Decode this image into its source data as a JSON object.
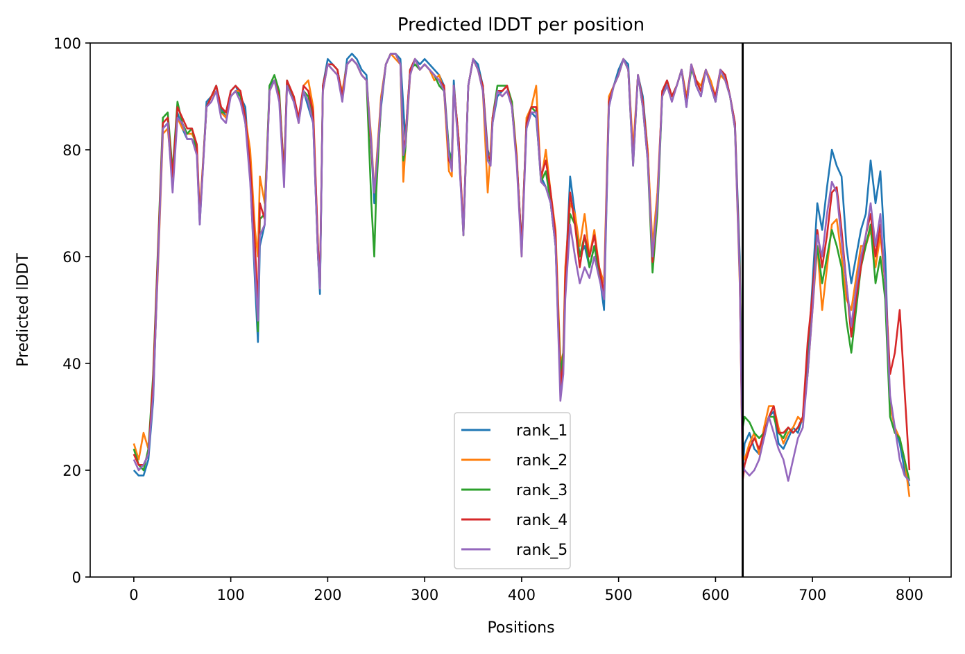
{
  "chart_data": {
    "type": "line",
    "title": "Predicted lDDT per position",
    "xlabel": "Positions",
    "ylabel": "Predicted lDDT",
    "xlim": [
      -45,
      843
    ],
    "ylim": [
      0,
      100
    ],
    "xticks": [
      0,
      100,
      200,
      300,
      400,
      500,
      600,
      700,
      800
    ],
    "yticks": [
      0,
      20,
      40,
      60,
      80,
      100
    ],
    "grid": false,
    "legend_position": "lower center",
    "vline_x": 628,
    "colors": {
      "rank_1": "#1f77b4",
      "rank_2": "#ff7f0e",
      "rank_3": "#2ca02c",
      "rank_4": "#d62728",
      "rank_5": "#9467bd",
      "vline": "#000000"
    },
    "x": [
      0,
      5,
      10,
      15,
      20,
      25,
      30,
      35,
      40,
      45,
      50,
      55,
      60,
      65,
      68,
      75,
      80,
      85,
      90,
      95,
      100,
      105,
      110,
      115,
      120,
      125,
      128,
      130,
      135,
      140,
      145,
      150,
      155,
      158,
      165,
      170,
      175,
      180,
      185,
      190,
      192,
      195,
      200,
      205,
      210,
      215,
      220,
      225,
      230,
      235,
      240,
      245,
      248,
      250,
      255,
      260,
      265,
      270,
      275,
      278,
      280,
      285,
      290,
      295,
      300,
      305,
      310,
      315,
      320,
      325,
      328,
      330,
      335,
      340,
      345,
      350,
      355,
      360,
      365,
      368,
      370,
      375,
      380,
      385,
      390,
      395,
      400,
      405,
      410,
      415,
      420,
      425,
      430,
      435,
      440,
      443,
      445,
      450,
      455,
      460,
      465,
      470,
      475,
      480,
      485,
      490,
      495,
      500,
      505,
      510,
      515,
      520,
      525,
      530,
      535,
      540,
      545,
      550,
      555,
      560,
      565,
      570,
      575,
      580,
      585,
      590,
      595,
      600,
      605,
      610,
      615,
      620,
      625,
      628,
      630,
      635,
      640,
      645,
      650,
      655,
      660,
      665,
      670,
      675,
      680,
      685,
      690,
      695,
      700,
      705,
      710,
      715,
      720,
      725,
      730,
      735,
      740,
      745,
      750,
      755,
      760,
      765,
      770,
      775,
      780,
      785,
      790,
      795,
      800
    ],
    "series": [
      {
        "name": "rank_1",
        "values": [
          20,
          19,
          19,
          22,
          33,
          60,
          84,
          85,
          75,
          87,
          84,
          82,
          82,
          80,
          66,
          89,
          90,
          92,
          88,
          86,
          91,
          92,
          90,
          88,
          75,
          55,
          44,
          62,
          66,
          92,
          93,
          90,
          75,
          92,
          89,
          86,
          91,
          88,
          85,
          60,
          53,
          92,
          97,
          96,
          95,
          90,
          97,
          98,
          97,
          95,
          94,
          80,
          70,
          75,
          88,
          96,
          98,
          98,
          97,
          88,
          82,
          95,
          97,
          96,
          97,
          96,
          95,
          94,
          92,
          80,
          78,
          93,
          80,
          65,
          92,
          97,
          96,
          92,
          80,
          78,
          85,
          90,
          91,
          92,
          88,
          78,
          62,
          84,
          87,
          86,
          75,
          73,
          70,
          62,
          35,
          40,
          55,
          75,
          68,
          60,
          62,
          58,
          62,
          57,
          50,
          88,
          92,
          95,
          97,
          96,
          78,
          94,
          90,
          80,
          60,
          70,
          90,
          93,
          90,
          92,
          95,
          88,
          96,
          92,
          90,
          95,
          92,
          89,
          95,
          94,
          90,
          85,
          60,
          20,
          25,
          27,
          24,
          23,
          26,
          30,
          31,
          25,
          24,
          26,
          28,
          27,
          30,
          40,
          55,
          70,
          65,
          73,
          80,
          77,
          75,
          62,
          55,
          60,
          65,
          68,
          78,
          70,
          76,
          60,
          32,
          28,
          25,
          20,
          17
        ]
      },
      {
        "name": "rank_2",
        "values": [
          25,
          22,
          27,
          24,
          35,
          58,
          83,
          84,
          74,
          86,
          84,
          83,
          83,
          81,
          68,
          88,
          90,
          91,
          87,
          86,
          90,
          91,
          91,
          86,
          80,
          65,
          60,
          75,
          70,
          91,
          93,
          90,
          76,
          92,
          90,
          85,
          92,
          93,
          88,
          62,
          55,
          91,
          96,
          95,
          94,
          91,
          96,
          97,
          96,
          94,
          93,
          82,
          72,
          77,
          90,
          96,
          98,
          97,
          96,
          74,
          80,
          94,
          97,
          95,
          96,
          95,
          93,
          94,
          91,
          76,
          75,
          92,
          82,
          64,
          92,
          97,
          95,
          91,
          72,
          80,
          86,
          91,
          90,
          91,
          89,
          79,
          60,
          86,
          88,
          92,
          74,
          80,
          72,
          65,
          40,
          42,
          58,
          70,
          68,
          62,
          68,
          60,
          65,
          58,
          55,
          90,
          92,
          94,
          97,
          95,
          80,
          94,
          89,
          80,
          62,
          72,
          90,
          92,
          90,
          92,
          95,
          90,
          95,
          93,
          92,
          95,
          93,
          90,
          94,
          93,
          90,
          84,
          55,
          23,
          22,
          25,
          27,
          23,
          28,
          32,
          32,
          28,
          25,
          27,
          28,
          30,
          29,
          38,
          50,
          62,
          50,
          58,
          66,
          67,
          60,
          52,
          50,
          56,
          62,
          62,
          65,
          58,
          64,
          55,
          32,
          28,
          26,
          22,
          15
        ]
      },
      {
        "name": "rank_3",
        "values": [
          24,
          21,
          20,
          24,
          38,
          62,
          86,
          87,
          76,
          89,
          85,
          83,
          84,
          80,
          67,
          88,
          90,
          92,
          87,
          87,
          90,
          91,
          90,
          85,
          76,
          60,
          46,
          67,
          68,
          92,
          94,
          91,
          75,
          93,
          89,
          86,
          91,
          90,
          86,
          60,
          54,
          92,
          96,
          96,
          95,
          90,
          96,
          97,
          96,
          94,
          93,
          70,
          60,
          72,
          89,
          96,
          98,
          98,
          96,
          78,
          80,
          95,
          96,
          95,
          96,
          95,
          94,
          92,
          91,
          80,
          77,
          92,
          82,
          64,
          92,
          97,
          95,
          92,
          78,
          78,
          86,
          92,
          92,
          92,
          89,
          78,
          62,
          85,
          88,
          87,
          74,
          76,
          70,
          62,
          38,
          42,
          55,
          68,
          66,
          60,
          64,
          58,
          62,
          57,
          52,
          89,
          92,
          94,
          97,
          95,
          77,
          94,
          88,
          78,
          57,
          68,
          90,
          92,
          90,
          92,
          95,
          89,
          95,
          93,
          91,
          95,
          92,
          89,
          95,
          93,
          90,
          84,
          58,
          28,
          30,
          29,
          27,
          26,
          27,
          30,
          30,
          27,
          26,
          28,
          27,
          28,
          30,
          38,
          52,
          62,
          55,
          60,
          65,
          62,
          58,
          48,
          42,
          50,
          58,
          62,
          66,
          55,
          60,
          52,
          30,
          27,
          26,
          22,
          18
        ]
      },
      {
        "name": "rank_4",
        "values": [
          23,
          21,
          21,
          23,
          37,
          61,
          85,
          86,
          75,
          88,
          86,
          84,
          84,
          81,
          67,
          88,
          90,
          92,
          88,
          87,
          91,
          92,
          91,
          86,
          77,
          62,
          50,
          70,
          67,
          91,
          93,
          90,
          75,
          93,
          90,
          86,
          92,
          91,
          87,
          62,
          55,
          92,
          96,
          96,
          95,
          90,
          96,
          97,
          96,
          94,
          93,
          80,
          72,
          76,
          89,
          96,
          98,
          98,
          96,
          80,
          82,
          95,
          97,
          95,
          96,
          95,
          94,
          93,
          92,
          78,
          77,
          92,
          82,
          65,
          92,
          97,
          95,
          92,
          79,
          78,
          86,
          91,
          91,
          92,
          88,
          78,
          62,
          85,
          88,
          88,
          75,
          78,
          72,
          64,
          36,
          40,
          56,
          72,
          66,
          58,
          64,
          60,
          64,
          58,
          53,
          89,
          92,
          94,
          97,
          95,
          78,
          94,
          89,
          79,
          59,
          70,
          91,
          93,
          90,
          92,
          95,
          89,
          96,
          93,
          91,
          95,
          92,
          90,
          95,
          94,
          90,
          85,
          57,
          18,
          21,
          24,
          26,
          24,
          27,
          30,
          32,
          27,
          27,
          28,
          27,
          28,
          30,
          44,
          53,
          65,
          58,
          64,
          72,
          73,
          65,
          55,
          45,
          52,
          58,
          64,
          68,
          60,
          66,
          55,
          38,
          42,
          50,
          35,
          20
        ]
      },
      {
        "name": "rank_5",
        "values": [
          22,
          20,
          21,
          23,
          34,
          59,
          84,
          85,
          72,
          86,
          85,
          82,
          82,
          79,
          66,
          88,
          89,
          91,
          86,
          85,
          90,
          91,
          89,
          85,
          74,
          57,
          48,
          64,
          66,
          91,
          93,
          89,
          73,
          92,
          89,
          85,
          91,
          89,
          85,
          60,
          54,
          91,
          96,
          95,
          94,
          89,
          96,
          97,
          96,
          94,
          93,
          81,
          72,
          76,
          89,
          96,
          98,
          98,
          96,
          79,
          81,
          94,
          97,
          95,
          96,
          95,
          94,
          93,
          91,
          79,
          76,
          92,
          80,
          64,
          92,
          97,
          95,
          91,
          78,
          77,
          85,
          91,
          90,
          91,
          88,
          77,
          60,
          84,
          87,
          87,
          74,
          73,
          70,
          62,
          33,
          38,
          52,
          66,
          60,
          55,
          58,
          56,
          60,
          56,
          52,
          88,
          92,
          94,
          97,
          95,
          77,
          94,
          88,
          78,
          60,
          70,
          90,
          92,
          89,
          92,
          95,
          88,
          96,
          92,
          90,
          95,
          92,
          89,
          95,
          93,
          90,
          84,
          56,
          21,
          20,
          19,
          20,
          22,
          26,
          30,
          27,
          24,
          22,
          18,
          22,
          26,
          28,
          38,
          50,
          64,
          60,
          68,
          74,
          72,
          63,
          55,
          47,
          54,
          60,
          64,
          70,
          62,
          68,
          55,
          34,
          28,
          22,
          19,
          18
        ]
      }
    ]
  }
}
